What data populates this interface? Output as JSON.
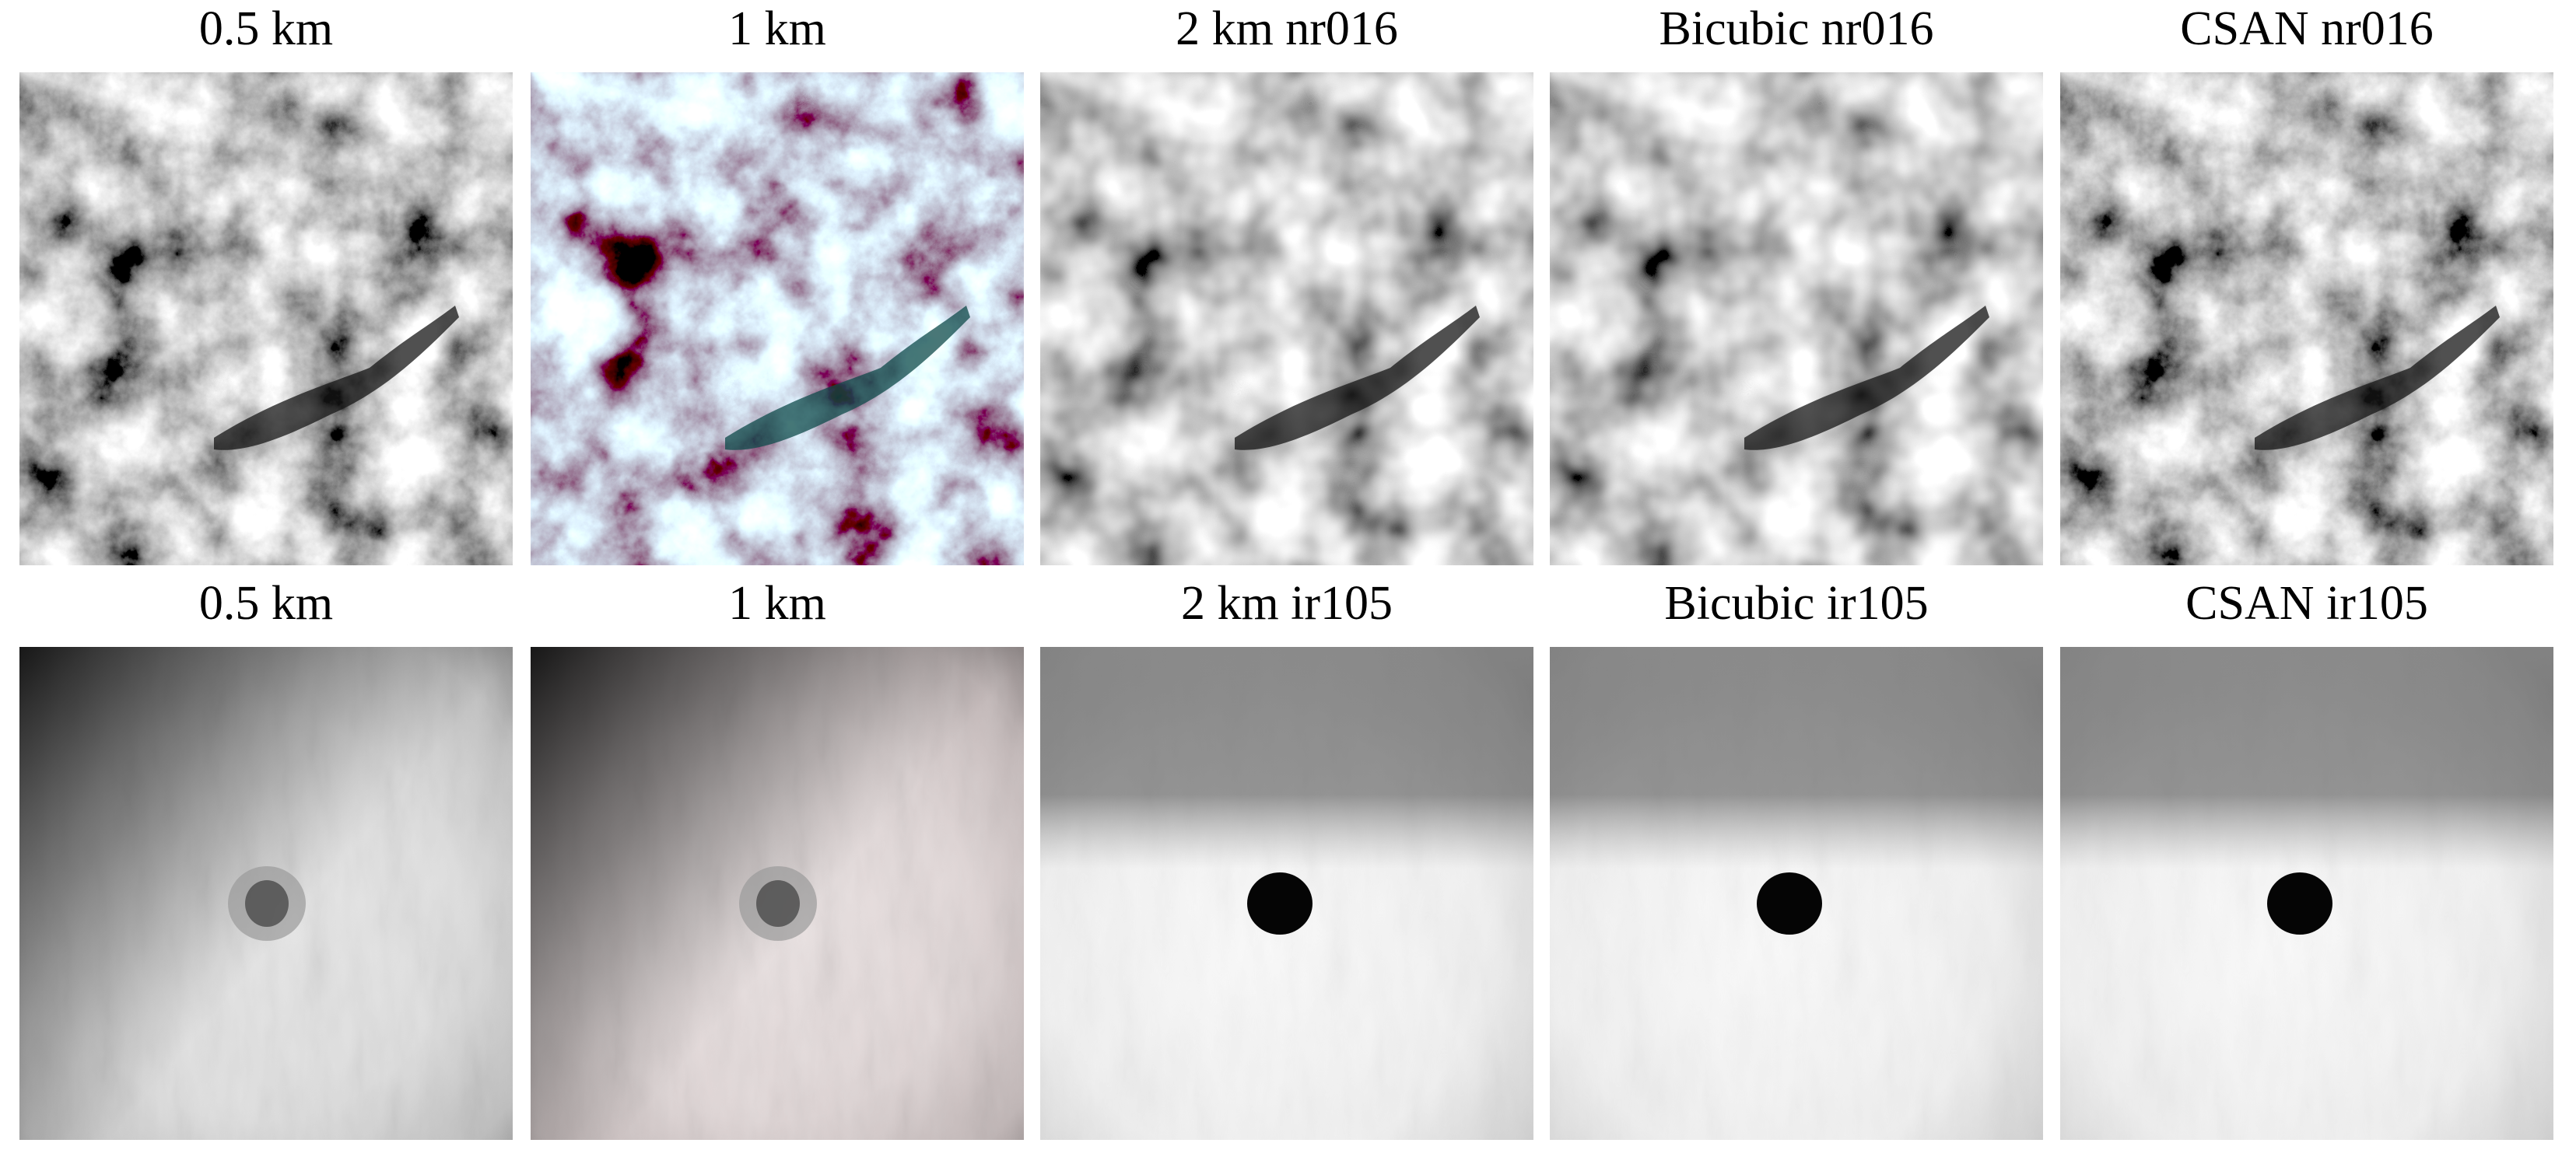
{
  "figure": {
    "rows": [
      {
        "panels": [
          {
            "title": "0.5 km"
          },
          {
            "title": "1 km"
          },
          {
            "title": "2 km nr016"
          },
          {
            "title": "Bicubic nr016"
          },
          {
            "title": "CSAN nr016"
          }
        ]
      },
      {
        "panels": [
          {
            "title": "0.5 km"
          },
          {
            "title": "1 km"
          },
          {
            "title": "2 km ir105"
          },
          {
            "title": "Bicubic ir105"
          },
          {
            "title": "CSAN ir105"
          }
        ]
      }
    ]
  }
}
